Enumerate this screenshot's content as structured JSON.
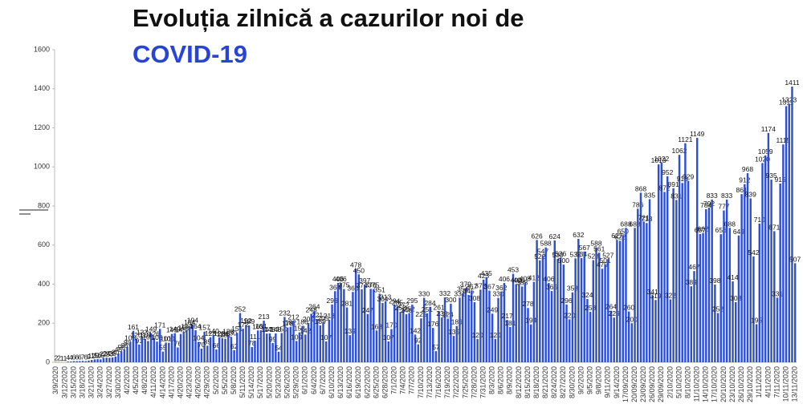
{
  "chart_data": {
    "type": "bar",
    "title": "Evoluția zilnică a cazurilor noi de",
    "title_highlight": "COVID-19",
    "color": "#2d4fd4",
    "ylim": [
      0,
      1600
    ],
    "yticks": [
      0,
      200,
      400,
      600,
      800,
      1000,
      1200,
      1400,
      1600
    ],
    "categories": [
      "3/9/2020",
      null,
      null,
      "3/12/2020",
      null,
      null,
      "3/15/2020",
      null,
      null,
      "3/18/2020",
      null,
      null,
      "3/21/2020",
      null,
      null,
      "3/24/2020",
      null,
      null,
      "3/27/2020",
      null,
      null,
      "3/30/2020",
      null,
      null,
      "4/2/2020",
      null,
      null,
      "4/5/2020",
      null,
      null,
      "4/8/2020",
      null,
      null,
      "4/11/2020",
      null,
      null,
      "4/14/2020",
      null,
      null,
      "4/17/2020",
      null,
      null,
      "4/20/2020",
      null,
      null,
      "4/23/2020",
      null,
      null,
      "4/26/2020",
      null,
      null,
      "4/29/2020",
      null,
      null,
      "5/2/2020",
      null,
      null,
      "5/5/2020",
      null,
      null,
      "5/8/2020",
      null,
      null,
      "5/11/2020",
      null,
      null,
      "5/14/2020",
      null,
      null,
      "5/17/2020",
      null,
      null,
      "5/20/2020",
      null,
      null,
      "5/23/2020",
      null,
      null,
      "5/26/2020",
      null,
      null,
      "5/29/2020",
      null,
      null,
      "6/1/2020",
      null,
      null,
      "6/4/2020",
      null,
      null,
      "6/7/2020",
      null,
      null,
      "6/10/2020",
      null,
      null,
      "6/13/2020",
      null,
      null,
      "6/16/2020",
      null,
      null,
      "6/19/2020",
      null,
      null,
      "6/22/2020",
      null,
      null,
      "6/25/2020",
      null,
      null,
      "6/28/2020",
      null,
      null,
      "7/1/2020",
      null,
      null,
      "7/4/2020",
      null,
      null,
      "7/7/2020",
      null,
      null,
      "7/10/2020",
      null,
      null,
      "7/13/2020",
      null,
      null,
      "7/16/2020",
      null,
      null,
      "7/19/2020",
      null,
      null,
      "7/22/2020",
      null,
      null,
      "7/25/2020",
      null,
      null,
      "7/28/2020",
      null,
      null,
      "7/31/2020",
      null,
      null,
      "8/3/2020",
      null,
      null,
      "8/6/2020",
      null,
      null,
      "8/9/2020",
      null,
      null,
      "8/12/2020",
      null,
      null,
      "8/15/2020",
      null,
      null,
      "8/18/2020",
      null,
      null,
      "8/21/2020",
      null,
      null,
      "8/24/2020",
      null,
      null,
      "8/27/2020",
      null,
      null,
      "8/30/2020",
      null,
      null,
      "9/2/2020",
      null,
      null,
      "9/5/2020",
      null,
      null,
      "9/8/2020",
      null,
      null,
      "9/11/2020",
      null,
      null,
      "9/14/2020",
      null,
      null,
      "17/09/2020",
      null,
      null,
      "20/09/2020",
      null,
      null,
      "23/09/2020",
      null,
      null,
      "26/09/2020",
      null,
      null,
      "29/09/2020",
      null,
      null,
      "2/10/2020",
      null,
      null,
      "5/10/2020",
      null,
      null,
      "8/10/2020",
      null,
      null,
      "11/10/2020",
      null,
      null,
      "14/10/2020",
      null,
      null,
      "17/10/2020",
      null,
      null,
      "20/10/2020",
      null,
      null,
      "23/10/2020",
      null,
      null,
      "26/10/2020",
      null,
      null,
      "29/10/2020",
      null,
      null,
      "1/11/2020",
      null,
      null,
      "4/11/2020",
      null,
      null,
      "7/11/2020",
      null,
      null,
      "10/11/2020",
      null,
      null,
      "13/11/2020"
    ],
    "values": [
      2,
      2,
      1,
      1,
      4,
      4,
      6,
      6,
      6,
      7,
      6,
      9,
      12,
      15,
      16,
      15,
      22,
      24,
      23,
      25,
      30,
      45,
      56,
      66,
      80,
      105,
      161,
      120,
      91,
      133,
      118,
      109,
      149,
      126,
      106,
      171,
      55,
      101,
      100,
      145,
      149,
      76,
      145,
      156,
      164,
      184,
      194,
      164,
      104,
      70,
      157,
      85,
      128,
      140,
      66,
      128,
      124,
      121,
      138,
      130,
      62,
      151,
      252,
      172,
      192,
      189,
      78,
      111,
      163,
      164,
      213,
      147,
      148,
      99,
      148,
      54,
      150,
      232,
      178,
      182,
      212,
      109,
      153,
      186,
      142,
      201,
      248,
      264,
      221,
      189,
      205,
      107,
      218,
      296,
      364,
      406,
      406,
      375,
      281,
      139,
      360,
      478,
      450,
      374,
      397,
      247,
      376,
      375,
      163,
      351,
      304,
      313,
      107,
      170,
      294,
      285,
      258,
      272,
      246,
      252,
      295,
      142,
      92,
      225,
      330,
      251,
      284,
      176,
      57,
      261,
      230,
      332,
      224,
      300,
      135,
      186,
      331,
      354,
      379,
      345,
      367,
      308,
      120,
      372,
      423,
      435,
      367,
      249,
      120,
      330,
      362,
      406,
      217,
      181,
      453,
      400,
      400,
      388,
      408,
      278,
      194,
      412,
      626,
      522,
      547,
      588,
      406,
      365,
      624,
      530,
      536,
      500,
      296,
      220,
      358,
      532,
      632,
      534,
      567,
      324,
      258,
      523,
      588,
      561,
      479,
      501,
      527,
      264,
      229,
      627,
      622,
      650,
      688,
      260,
      200,
      688,
      786,
      868,
      721,
      713,
      835,
      341,
      319,
      1013,
      1022,
      872,
      952,
      322,
      891,
      831,
      1062,
      918,
      1121,
      929,
      389,
      467,
      1149,
      657,
      662,
      784,
      792,
      833,
      398,
      252,
      656,
      777,
      833,
      688,
      414,
      308,
      649,
      861,
      912,
      968,
      839,
      542,
      195,
      710,
      1020,
      1059,
      1174,
      935,
      671,
      331,
      915,
      1115,
      1311,
      1323,
      1411,
      507
    ]
  }
}
